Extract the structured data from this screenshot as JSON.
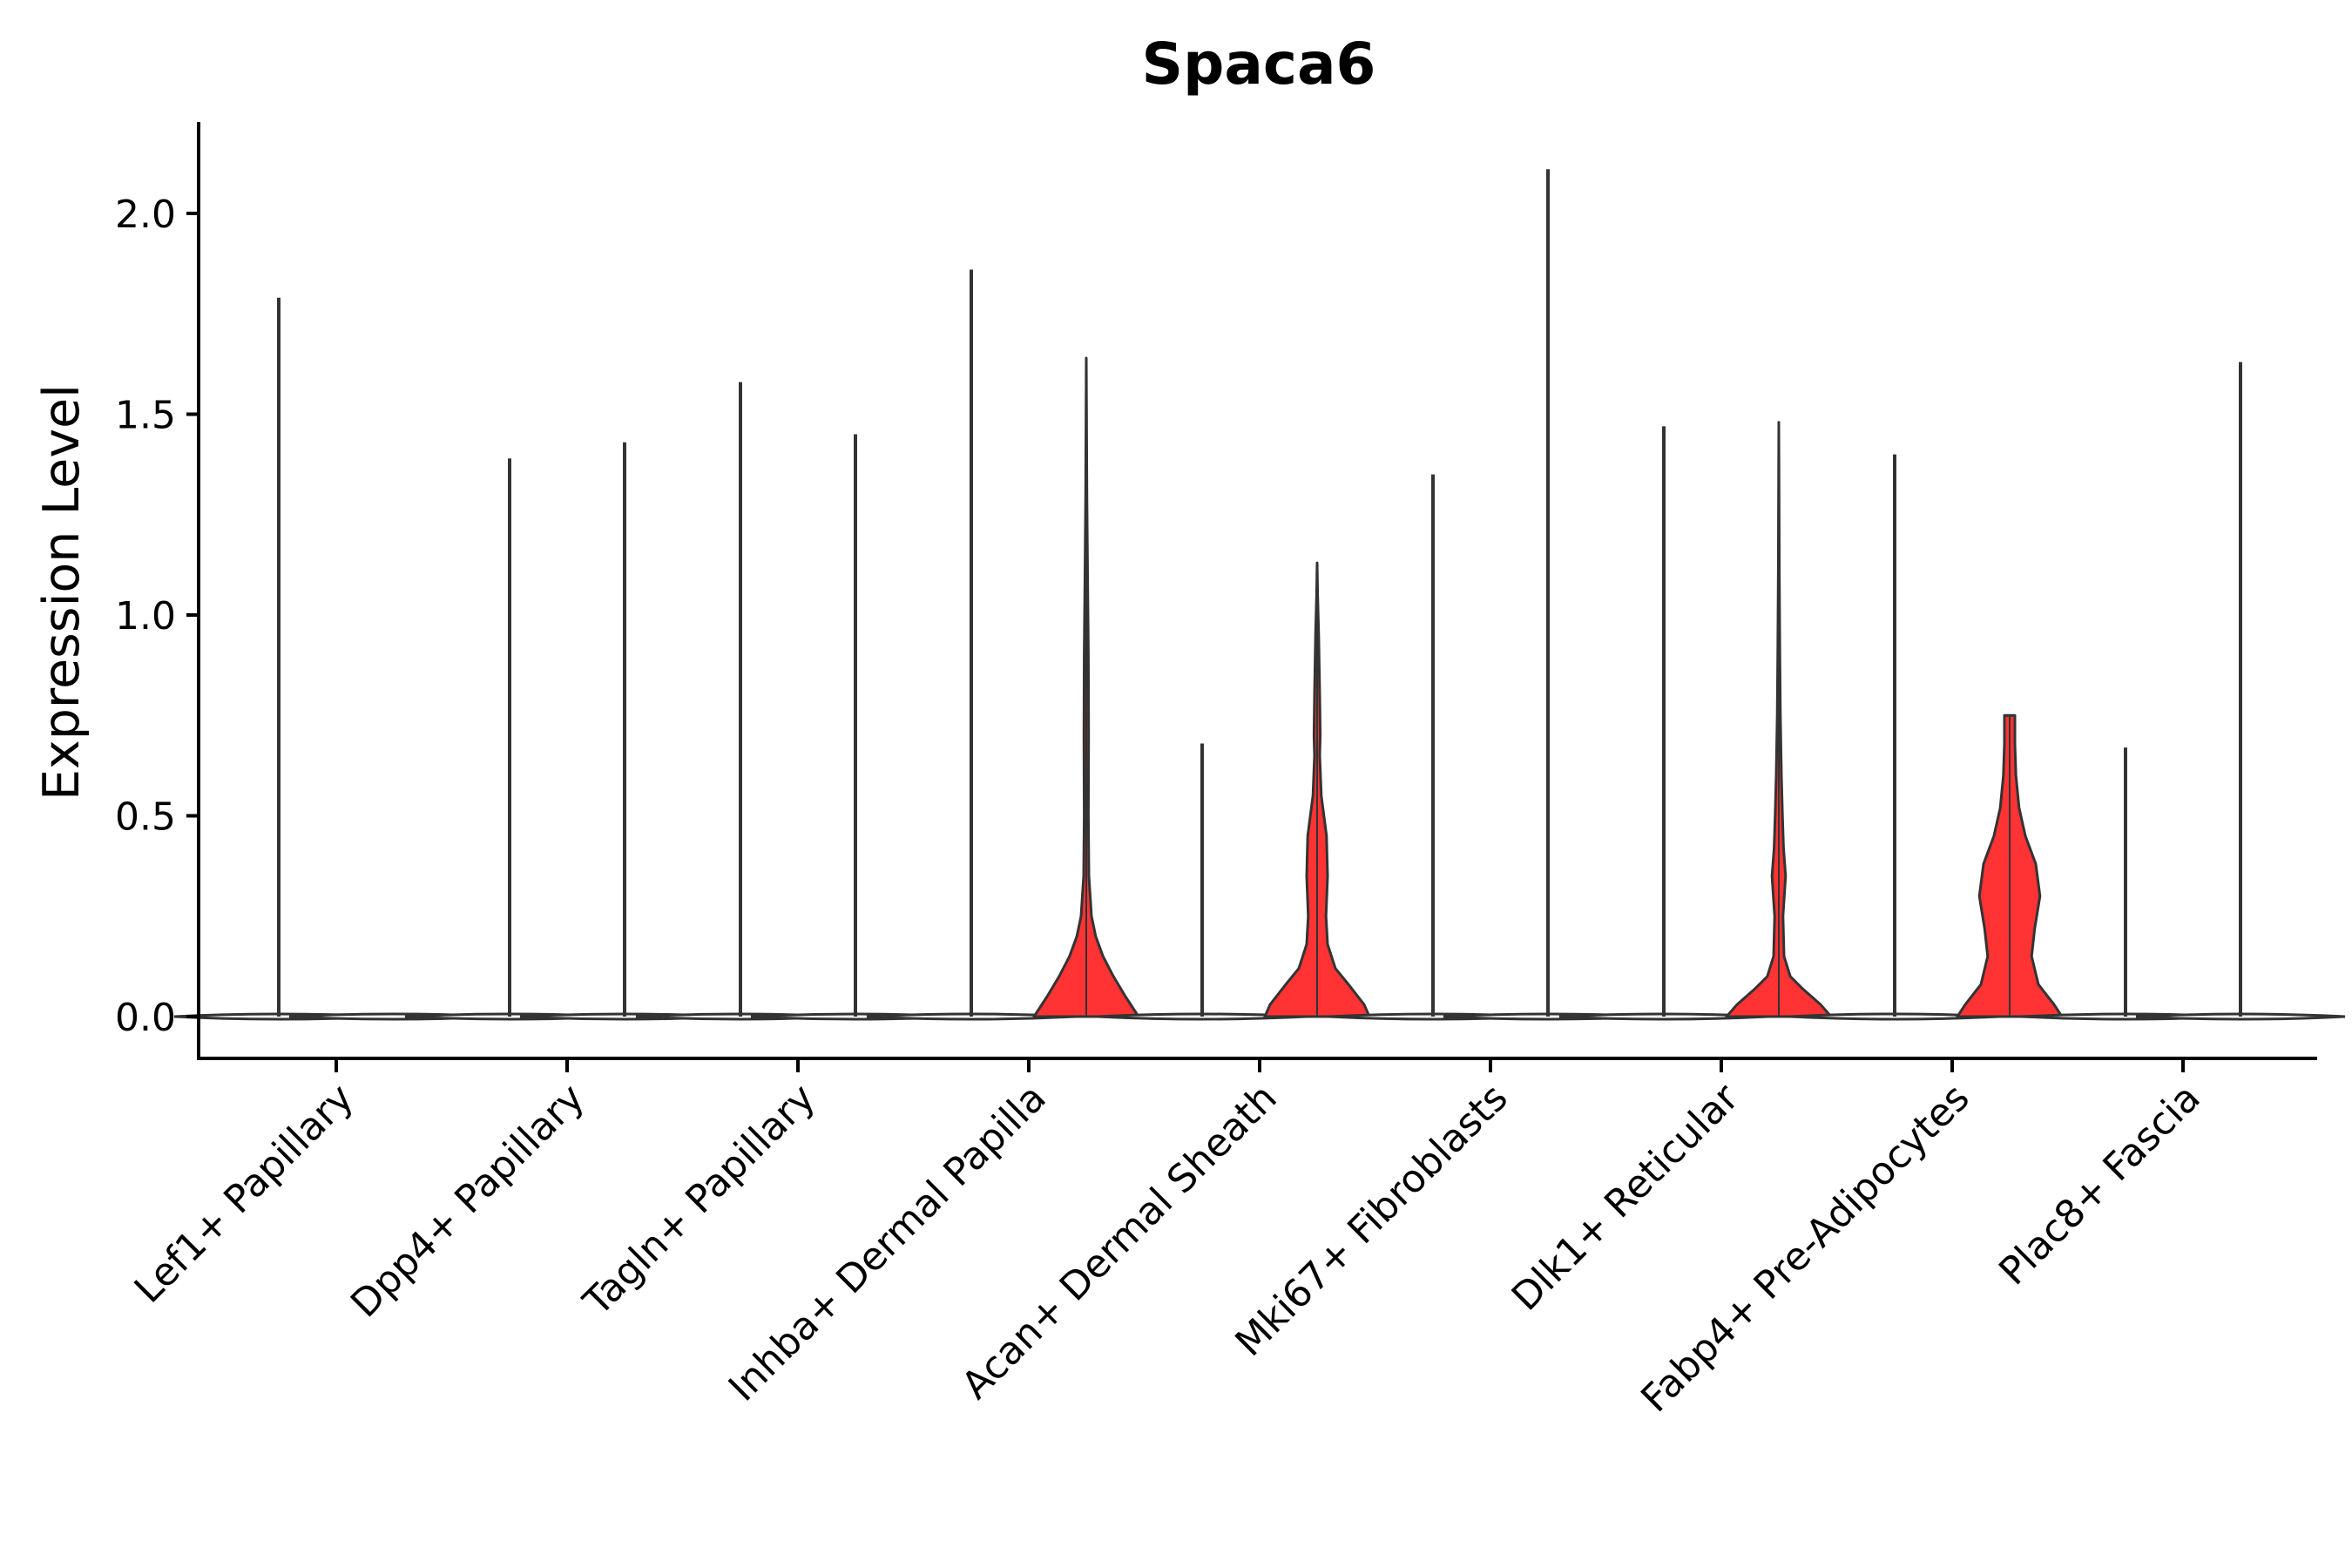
{
  "chart_data": {
    "type": "violin",
    "title": "Spaca6",
    "xlabel": "",
    "ylabel": "Expression Level",
    "ylim": [
      -0.1,
      2.22
    ],
    "yticks": [
      0.0,
      0.5,
      1.0,
      1.5,
      2.0
    ],
    "ytick_labels": [
      "0.0",
      "0.5",
      "1.0",
      "1.5",
      "2.0"
    ],
    "categories": [
      "Lef1+ Papillary",
      "Dpp4+ Papillary",
      "Tagln+ Papillary",
      "Inhba+ Dermal Papilla",
      "Acan+ Dermal Sheath",
      "Mki67+ Fibroblasts",
      "Dlk1+ Reticular",
      "Fabp4+ Pre-Adipocytes",
      "Plac8+ Fascia"
    ],
    "split_groups": [
      "left",
      "right"
    ],
    "colors": {
      "left": "#ffffff",
      "right_expressed": "#ff3333",
      "outline": "#333333",
      "axis": "#000000"
    },
    "violins": [
      {
        "category": "Lef1+ Papillary",
        "group": "left",
        "max": 1.79,
        "expressed": false
      },
      {
        "category": "Lef1+ Papillary",
        "group": "right",
        "max": 0.0,
        "expressed": false
      },
      {
        "category": "Dpp4+ Papillary",
        "group": "left",
        "max": 1.39,
        "expressed": false
      },
      {
        "category": "Dpp4+ Papillary",
        "group": "right",
        "max": 1.43,
        "expressed": false
      },
      {
        "category": "Tagln+ Papillary",
        "group": "left",
        "max": 1.58,
        "expressed": false
      },
      {
        "category": "Tagln+ Papillary",
        "group": "right",
        "max": 1.45,
        "expressed": false
      },
      {
        "category": "Inhba+ Dermal Papilla",
        "group": "left",
        "max": 1.86,
        "expressed": false
      },
      {
        "category": "Inhba+ Dermal Papilla",
        "group": "right",
        "max": 1.64,
        "expressed": true,
        "profile": [
          [
            0.0,
            1.0
          ],
          [
            0.05,
            0.75
          ],
          [
            0.1,
            0.52
          ],
          [
            0.15,
            0.32
          ],
          [
            0.2,
            0.18
          ],
          [
            0.25,
            0.1
          ],
          [
            0.35,
            0.05
          ],
          [
            0.5,
            0.04
          ],
          [
            0.7,
            0.045
          ],
          [
            0.9,
            0.04
          ],
          [
            1.1,
            0.025
          ],
          [
            1.3,
            0.012
          ],
          [
            1.5,
            0.005
          ],
          [
            1.64,
            0.0
          ]
        ]
      },
      {
        "category": "Acan+ Dermal Sheath",
        "group": "left",
        "max": 0.68,
        "expressed": false
      },
      {
        "category": "Acan+ Dermal Sheath",
        "group": "right",
        "max": 1.13,
        "expressed": true,
        "profile": [
          [
            0.0,
            1.0
          ],
          [
            0.03,
            0.9
          ],
          [
            0.08,
            0.6
          ],
          [
            0.12,
            0.35
          ],
          [
            0.18,
            0.2
          ],
          [
            0.25,
            0.17
          ],
          [
            0.35,
            0.2
          ],
          [
            0.45,
            0.18
          ],
          [
            0.55,
            0.08
          ],
          [
            0.65,
            0.05
          ],
          [
            0.7,
            0.06
          ],
          [
            0.8,
            0.05
          ],
          [
            0.95,
            0.03
          ],
          [
            1.05,
            0.01
          ],
          [
            1.13,
            0.0
          ]
        ]
      },
      {
        "category": "Mki67+ Fibroblasts",
        "group": "left",
        "max": 1.35,
        "expressed": false
      },
      {
        "category": "Mki67+ Fibroblasts",
        "group": "right",
        "max": 2.11,
        "expressed": false
      },
      {
        "category": "Dlk1+ Reticular",
        "group": "left",
        "max": 1.47,
        "expressed": false
      },
      {
        "category": "Dlk1+ Reticular",
        "group": "right",
        "max": 1.48,
        "expressed": true,
        "profile": [
          [
            0.0,
            1.0
          ],
          [
            0.03,
            0.8
          ],
          [
            0.07,
            0.45
          ],
          [
            0.1,
            0.22
          ],
          [
            0.15,
            0.1
          ],
          [
            0.25,
            0.08
          ],
          [
            0.35,
            0.13
          ],
          [
            0.42,
            0.09
          ],
          [
            0.5,
            0.07
          ],
          [
            0.6,
            0.05
          ],
          [
            0.75,
            0.03
          ],
          [
            0.9,
            0.02
          ],
          [
            1.1,
            0.01
          ],
          [
            1.48,
            0.0
          ]
        ]
      },
      {
        "category": "Fabp4+ Pre-Adipocytes",
        "group": "left",
        "max": 1.4,
        "expressed": false
      },
      {
        "category": "Fabp4+ Pre-Adipocytes",
        "group": "right",
        "max": 0.75,
        "expressed": true,
        "profile": [
          [
            0.0,
            1.0
          ],
          [
            0.03,
            0.85
          ],
          [
            0.08,
            0.55
          ],
          [
            0.15,
            0.42
          ],
          [
            0.22,
            0.48
          ],
          [
            0.3,
            0.58
          ],
          [
            0.38,
            0.5
          ],
          [
            0.45,
            0.3
          ],
          [
            0.52,
            0.18
          ],
          [
            0.6,
            0.12
          ],
          [
            0.68,
            0.1
          ],
          [
            0.75,
            0.1
          ]
        ]
      },
      {
        "category": "Plac8+ Fascia",
        "group": "left",
        "max": 0.67,
        "expressed": false
      },
      {
        "category": "Plac8+ Fascia",
        "group": "right",
        "max": 1.63,
        "expressed": false
      }
    ]
  }
}
